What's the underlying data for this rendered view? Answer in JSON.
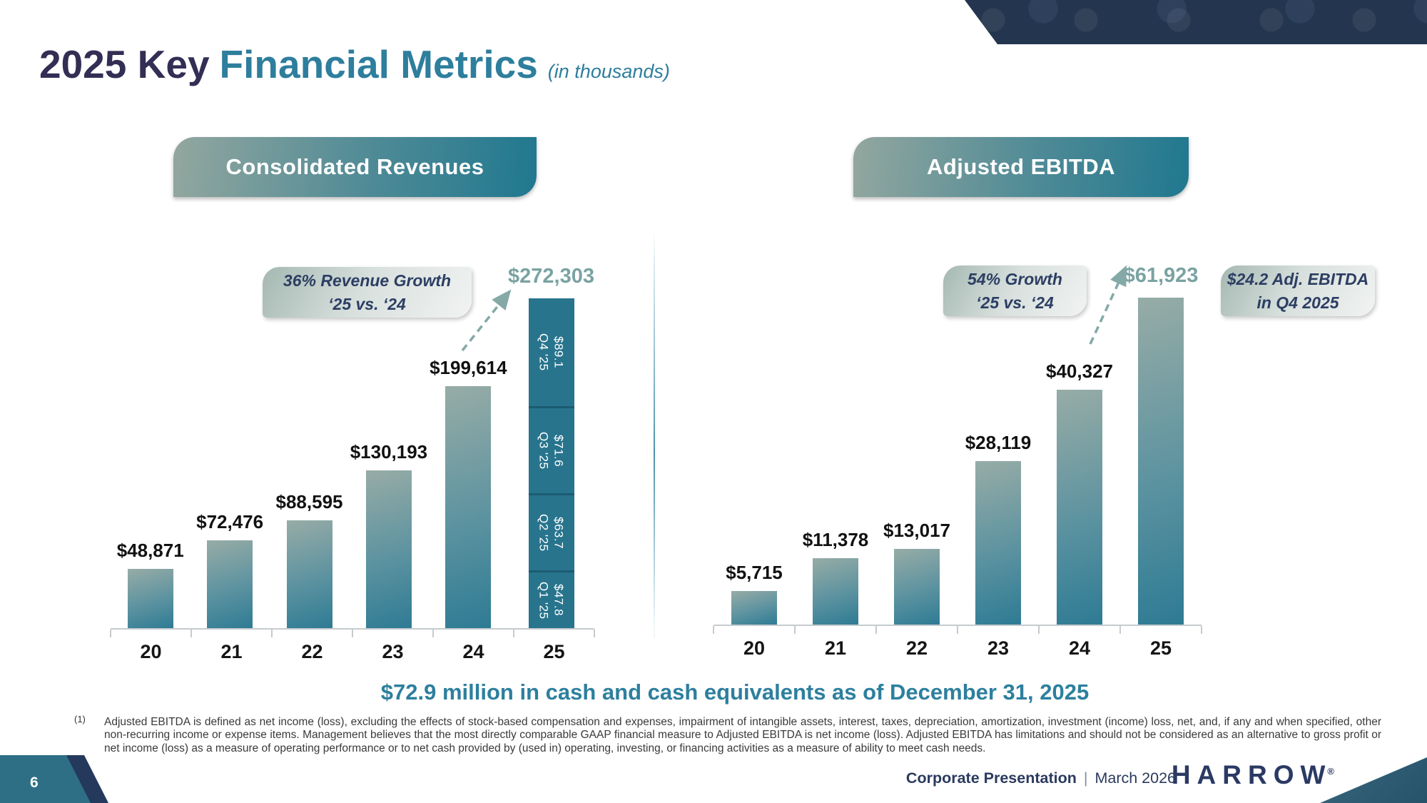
{
  "slide": {
    "title": {
      "primary": "2025 Key",
      "highlight": "Financial Metrics",
      "unit_note": "(in thousands)"
    },
    "cash_highlight": "$72.9 million in cash and cash equivalents as of December 31, 2025",
    "footnote": {
      "marker": "(1)",
      "text": "Adjusted EBITDA is defined as net income (loss), excluding the effects of stock-based compensation and expenses, impairment of intangible assets, interest, taxes, depreciation, amortization, investment (income) loss, net, and, if any and when specified, other non-recurring income or expense items. Management believes that the most directly comparable GAAP financial measure to Adjusted EBITDA is net income (loss). Adjusted EBITDA has limitations and should not be considered as an alternative to gross profit or net income (loss) as a measure of operating performance or to net cash provided by (used in) operating, investing, or financing activities as a measure of ability to meet cash needs."
    },
    "footer": {
      "page_number": "6",
      "label": "Corporate Presentation",
      "separator": "|",
      "date": "March 2026",
      "logo_text": "HARROW",
      "registered_mark": "®"
    },
    "colors": {
      "title_navy": "#322E54",
      "accent_teal": "#2E7E9D",
      "bar_sage": "#97ACA6",
      "bar_teal": "#2E7B94",
      "stack_teal": "#28748D",
      "muted_total_label": "#7AA2A2",
      "callout_text_navy": "#2C3E63"
    }
  },
  "chart_data": [
    {
      "id": "revenues",
      "type": "bar",
      "title": "Consolidated Revenues",
      "ylim": [
        0,
        272303
      ],
      "gridlines": false,
      "legend": "none",
      "annotation": {
        "line1": "36% Revenue Growth",
        "line2": "‘25 vs. ‘24"
      },
      "categories": [
        "20",
        "21",
        "22",
        "23",
        "24",
        "25"
      ],
      "bars": [
        {
          "cat": "20",
          "value": 48871,
          "label": "$48,871"
        },
        {
          "cat": "21",
          "value": 72476,
          "label": "$72,476"
        },
        {
          "cat": "22",
          "value": 88595,
          "label": "$88,595"
        },
        {
          "cat": "23",
          "value": 130193,
          "label": "$130,193"
        },
        {
          "cat": "24",
          "value": 199614,
          "label": "$199,614"
        },
        {
          "cat": "25",
          "value": 272303,
          "label": "$272,303",
          "accent": true,
          "segments": [
            {
              "quarter": "Q1 '25",
              "amount": "$47.8",
              "value": 47800
            },
            {
              "quarter": "Q2 '25",
              "amount": "$63.7",
              "value": 63700
            },
            {
              "quarter": "Q3 '25",
              "amount": "$71.6",
              "value": 71600
            },
            {
              "quarter": "Q4 '25",
              "amount": "$89.1",
              "value": 89100
            }
          ]
        }
      ]
    },
    {
      "id": "ebitda",
      "type": "bar",
      "title": "Adjusted EBITDA",
      "ylim": [
        0,
        61923
      ],
      "gridlines": false,
      "legend": "none",
      "annotations": [
        {
          "line1": "54% Growth",
          "line2": "‘25 vs. ‘24"
        },
        {
          "line1": "$24.2 Adj. EBITDA",
          "line2": "in Q4 2025"
        }
      ],
      "categories": [
        "20",
        "21",
        "22",
        "23",
        "24",
        "25"
      ],
      "bars": [
        {
          "cat": "20",
          "value": 5715,
          "label": "$5,715"
        },
        {
          "cat": "21",
          "value": 11378,
          "label": "$11,378"
        },
        {
          "cat": "22",
          "value": 13017,
          "label": "$13,017"
        },
        {
          "cat": "23",
          "value": 28119,
          "label": "$28,119"
        },
        {
          "cat": "24",
          "value": 40327,
          "label": "$40,327"
        },
        {
          "cat": "25",
          "value": 61923,
          "label": "$61,923",
          "accent": true
        }
      ]
    }
  ]
}
